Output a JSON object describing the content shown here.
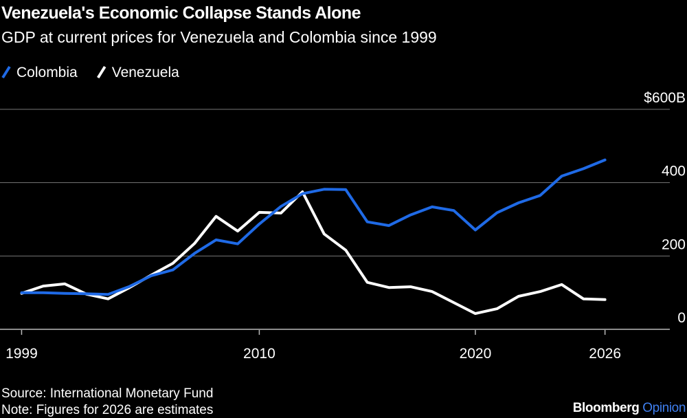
{
  "chart_data": {
    "type": "line",
    "title": "Venezuela's Economic Collapse Stands Alone",
    "subtitle": "GDP at current prices for Venezuela and Colombia since 1999",
    "x": [
      1999,
      2000,
      2001,
      2002,
      2003,
      2004,
      2005,
      2006,
      2007,
      2008,
      2009,
      2010,
      2011,
      2012,
      2013,
      2014,
      2015,
      2016,
      2017,
      2018,
      2019,
      2020,
      2021,
      2022,
      2023,
      2024,
      2025,
      2026
    ],
    "series": [
      {
        "name": "Colombia",
        "color": "#1f6ae6",
        "values": [
          100,
          100,
          98,
          97,
          95,
          117,
          146,
          162,
          207,
          244,
          233,
          287,
          335,
          370,
          382,
          381,
          293,
          283,
          312,
          334,
          324,
          271,
          318,
          345,
          365,
          418,
          438,
          462
        ]
      },
      {
        "name": "Venezuela",
        "color": "#ffffff",
        "values": [
          98,
          118,
          124,
          96,
          83,
          114,
          148,
          180,
          234,
          308,
          268,
          319,
          317,
          375,
          260,
          216,
          128,
          114,
          116,
          103,
          73,
          43,
          56,
          90,
          103,
          122,
          83,
          81
        ]
      }
    ],
    "xlim": [
      1998,
      2029
    ],
    "xticks": [
      1999,
      2010,
      2020,
      2026
    ],
    "ylim": [
      0,
      600
    ],
    "yticks": [
      {
        "value": 600,
        "label": "$600B"
      },
      400,
      200,
      0
    ],
    "grid": true,
    "source": "Source: International Monetary Fund",
    "note": "Note: Figures for 2026 are estimates",
    "brand": [
      "Bloomberg",
      "Opinion"
    ]
  }
}
